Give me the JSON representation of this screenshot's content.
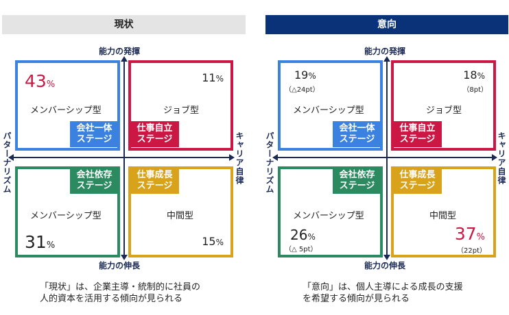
{
  "colors": {
    "blue": "#3b82e0",
    "red": "#cc1744",
    "green": "#2b8a5f",
    "gold": "#d9a21b",
    "navy": "#0a3278"
  },
  "axes": {
    "top": "能力の発揮",
    "bottom": "能力の伸長",
    "left": "パターナリズム",
    "right": "キャリア自律"
  },
  "left_panel": {
    "header": "現状",
    "quadrants": {
      "tl": {
        "pct": "43",
        "unit": "%",
        "type": "メンバーシップ型",
        "tag": "会社一体\nステージ"
      },
      "tr": {
        "pct": "11",
        "unit": "%",
        "type": "ジョブ型",
        "tag": "仕事自立\nステージ"
      },
      "bl": {
        "pct": "31",
        "unit": "%",
        "type": "メンバーシップ型",
        "tag": "会社依存\nステージ"
      },
      "br": {
        "pct": "15",
        "unit": "%",
        "type": "中間型",
        "tag": "仕事成長\nステージ"
      }
    },
    "caption_line1": "「現状」は、企業主導・統制的に社員の",
    "caption_line2": "人的資本を活用する傾向が見られる"
  },
  "right_panel": {
    "header": "意向",
    "quadrants": {
      "tl": {
        "pct": "19",
        "unit": "%",
        "delta": "（△24pt）",
        "type": "メンバーシップ型",
        "tag": "会社一体\nステージ"
      },
      "tr": {
        "pct": "18",
        "unit": "%",
        "delta": "（8pt）",
        "type": "ジョブ型",
        "tag": "仕事自立\nステージ"
      },
      "bl": {
        "pct": "26",
        "unit": "%",
        "delta": "（△ 5pt）",
        "type": "メンバーシップ型",
        "tag": "会社依存\nステージ"
      },
      "br": {
        "pct": "37",
        "unit": "%",
        "delta": "（22pt）",
        "type": "中間型",
        "tag": "仕事成長\nステージ"
      }
    },
    "caption_line1": "「意向」は、個人主導による成長の支援",
    "caption_line2": "を希望する傾向が見られる"
  }
}
